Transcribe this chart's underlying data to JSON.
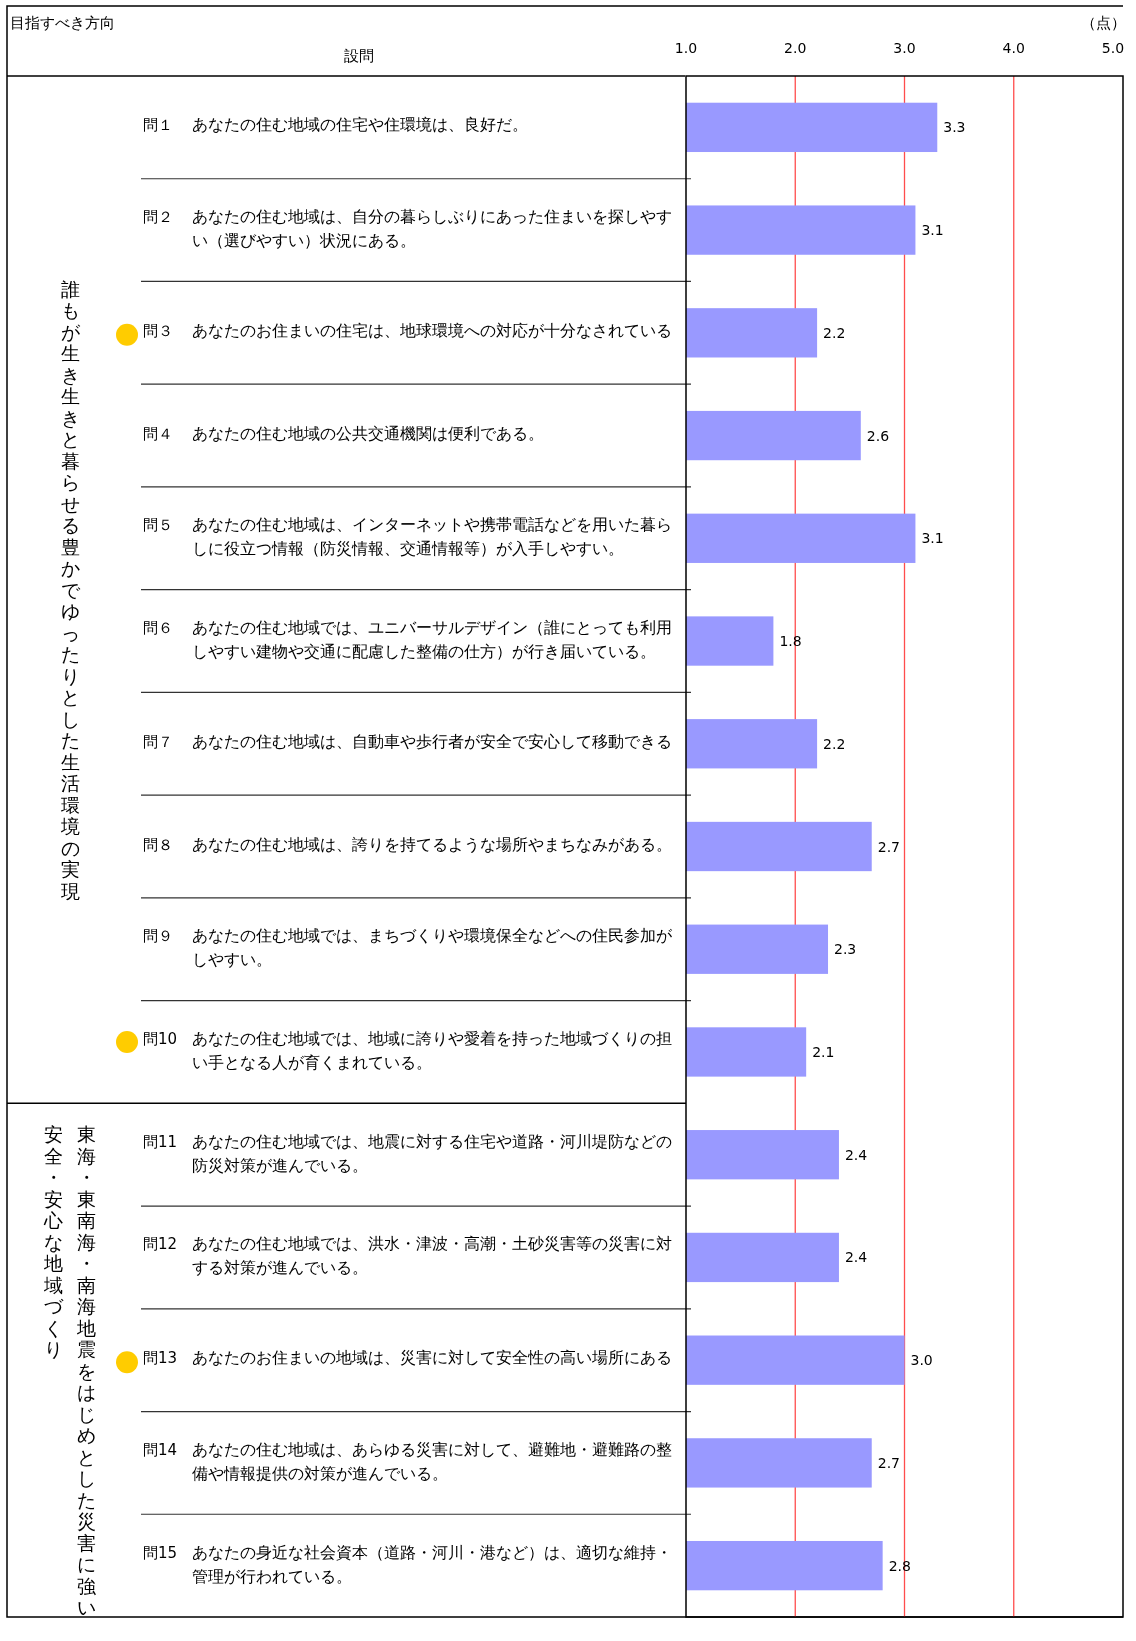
{
  "chart_data": {
    "type": "bar",
    "orientation": "horizontal",
    "xlabel": "（点）",
    "ylabel": "設問",
    "categories": [
      "問１　あなたの住む地域の住宅や住環境は、良好だ。",
      "問２　あなたの住む地域は、自分の暮らしぶりにあった住まいを探しやすい（選びやすい）状況にある。",
      "問３　あなたのお住まいの住宅は、地球環境への対応が十分なされている",
      "問４　あなたの住む地域の公共交通機関は便利である。",
      "問５　あなたの住む地域は、インターネットや携帯電話などを用いた暮らしに役立つ情報（防災情報、交通情報等）が入手しやすい。",
      "問６　あなたの住む地域では、ユニバーサルデザイン（誰にとっても利用しやすい建物や交通に配慮した整備の仕方）が行き届いている。",
      "問７　あなたの住む地域は、自動車や歩行者が安全で安心して移動できる",
      "問８　あなたの住む地域は、誇りを持てるような場所やまちなみがある。",
      "問９　あなたの住む地域では、まちづくりや環境保全などへの住民参加がしやすい。",
      "問10　あなたの住む地域では、地域に誇りや愛着を持った地域づくりの担い手となる人が育くまれている。",
      "問11　あなたの住む地域では、地震に対する住宅や道路・河川堤防などの防災対策が進んでいる。",
      "問12　あなたの住む地域では、洪水・津波・高潮・土砂災害等の災害に対する対策が進んでいる。",
      "問13　あなたのお住まいの地域は、災害に対して安全性の高い場所にある",
      "問14　あなたの住む地域は、あらゆる災害に対して、避難地・避難路の整備や情報提供の対策が進んでいる。",
      "問15　あなたの身近な社会資本（道路・河川・港など）は、適切な維持・管理が行われている。"
    ],
    "values": [
      3.3,
      3.1,
      2.2,
      2.6,
      3.1,
      1.8,
      2.2,
      2.7,
      2.3,
      2.1,
      2.4,
      2.4,
      3.0,
      2.7,
      2.8
    ],
    "value_labels": [
      "3.3",
      "3.1",
      "2.2",
      "2.6",
      "3.1",
      "1.8",
      "2.2",
      "2.7",
      "2.3",
      "2.1",
      "2.4",
      "2.4",
      "3.0",
      "2.7",
      "2.8"
    ],
    "color": "#9999ff",
    "xlim": [
      1,
      5
    ],
    "xticks": [
      {
        "value": 1,
        "label": "1.0"
      },
      {
        "value": 2,
        "label": "2.0"
      },
      {
        "value": 3,
        "label": "3.0"
      },
      {
        "value": 4,
        "label": "4.0"
      },
      {
        "value": 5,
        "label": "5.0"
      }
    ],
    "grid": "x",
    "annotations": [
      "目指すべき方向",
      "誰もが生き生きと暮らせる豊かでゆったりとした生活環境の実現",
      "東海・東南海・南海地震をはじめとした災害に強い",
      "安全・安心な地域づくり"
    ]
  }
}
